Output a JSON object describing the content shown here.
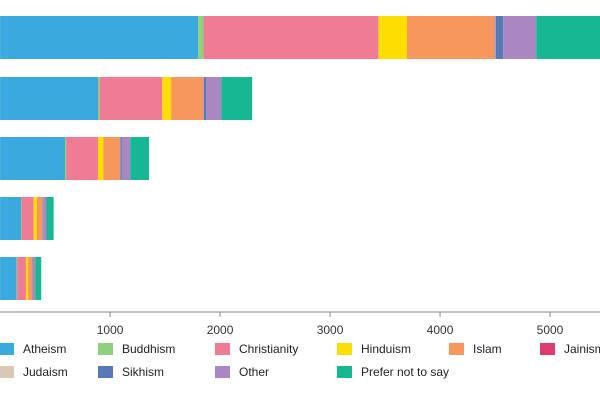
{
  "chart_data": {
    "type": "bar",
    "orientation": "horizontal",
    "stacked": true,
    "categories": [
      "",
      "",
      "",
      "",
      ""
    ],
    "xlim": [
      -10,
      5500
    ],
    "xticks": [
      1000,
      2000,
      3000,
      4000,
      5000
    ],
    "grid": false,
    "legend_position": "bottom",
    "series": [
      {
        "name": "Atheism",
        "color": "#3aa9dd",
        "values": [
          1800,
          890,
          590,
          190,
          150
        ]
      },
      {
        "name": "Buddhism",
        "color": "#8dd27a",
        "values": [
          50,
          15,
          10,
          5,
          5
        ]
      },
      {
        "name": "Christianity",
        "color": "#ef7c94",
        "values": [
          1590,
          570,
          290,
          110,
          80
        ]
      },
      {
        "name": "Hinduism",
        "color": "#fedd00",
        "values": [
          260,
          80,
          50,
          30,
          20
        ]
      },
      {
        "name": "Islam",
        "color": "#f7975d",
        "values": [
          790,
          290,
          150,
          50,
          40
        ]
      },
      {
        "name": "Jainism",
        "color": "#e03a6f",
        "values": [
          5,
          2,
          1,
          0,
          0
        ]
      },
      {
        "name": "Judaism",
        "color": "#d9c9b4",
        "values": [
          10,
          5,
          3,
          2,
          1
        ]
      },
      {
        "name": "Sikhism",
        "color": "#5879b8",
        "values": [
          70,
          20,
          10,
          5,
          3
        ]
      },
      {
        "name": "Other",
        "color": "#a887c2",
        "values": [
          300,
          140,
          80,
          30,
          20
        ]
      },
      {
        "name": "Prefer not to say",
        "color": "#16b894",
        "values": [
          630,
          280,
          170,
          65,
          55
        ]
      }
    ]
  }
}
